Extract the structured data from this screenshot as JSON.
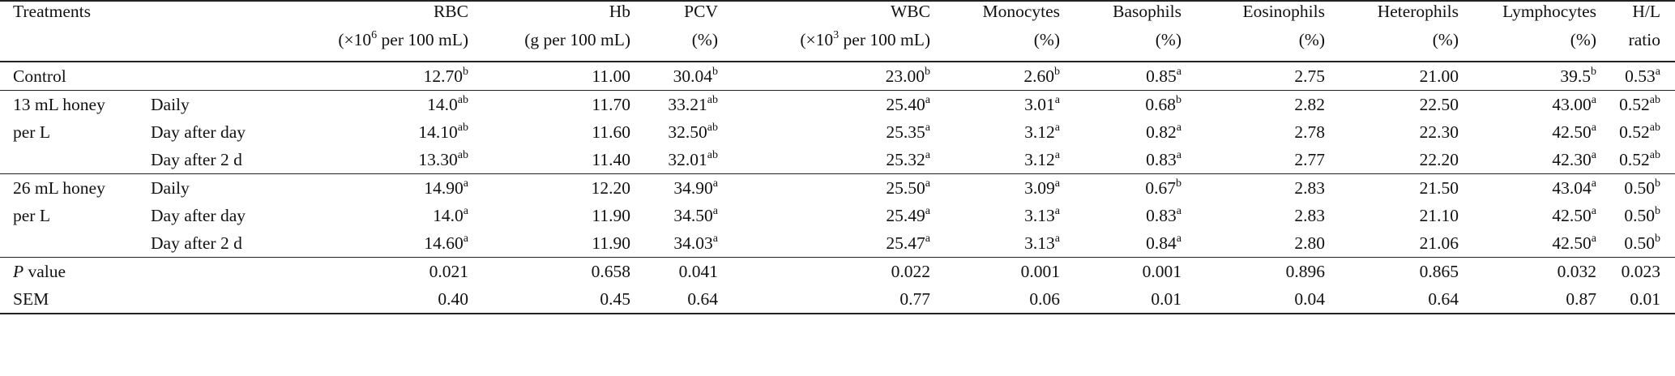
{
  "table": {
    "headers": {
      "treatments": "Treatments",
      "rbc": [
        "RBC",
        "(×10",
        "6",
        " per 100 mL)"
      ],
      "hb": [
        "Hb",
        "(g per 100 mL)"
      ],
      "pcv": [
        "PCV",
        "(%)"
      ],
      "wbc": [
        "WBC",
        "(×10",
        "3",
        " per 100 mL)"
      ],
      "monocytes": [
        "Monocytes",
        "(%)"
      ],
      "basophils": [
        "Basophils",
        "(%)"
      ],
      "eosinophils": [
        "Eosinophils",
        "(%)"
      ],
      "heterophils": [
        "Heterophils",
        "(%)"
      ],
      "lymphocytes": [
        "Lymphocytes",
        "(%)"
      ],
      "hl": [
        "H/L",
        "ratio"
      ]
    },
    "rows": [
      {
        "group": "Control",
        "sub": "",
        "rbc": [
          "12.70",
          "b"
        ],
        "hb": [
          "11.00",
          ""
        ],
        "pcv": [
          "30.04",
          "b"
        ],
        "wbc": [
          "23.00",
          "b"
        ],
        "mono": [
          "2.60",
          "b"
        ],
        "baso": [
          "0.85",
          "a"
        ],
        "eos": [
          "2.75",
          ""
        ],
        "het": [
          "21.00",
          ""
        ],
        "lym": [
          "39.5",
          "b"
        ],
        "hl": [
          "0.53",
          "a"
        ]
      },
      {
        "group": "13 mL honey",
        "sub": "Daily",
        "rbc": [
          "14.0",
          "ab"
        ],
        "hb": [
          "11.70",
          ""
        ],
        "pcv": [
          "33.21",
          "ab"
        ],
        "wbc": [
          "25.40",
          "a"
        ],
        "mono": [
          "3.01",
          "a"
        ],
        "baso": [
          "0.68",
          "b"
        ],
        "eos": [
          "2.82",
          ""
        ],
        "het": [
          "22.50",
          ""
        ],
        "lym": [
          "43.00",
          "a"
        ],
        "hl": [
          "0.52",
          "ab"
        ]
      },
      {
        "group": "per L",
        "sub": "Day after day",
        "rbc": [
          "14.10",
          "ab"
        ],
        "hb": [
          "11.60",
          ""
        ],
        "pcv": [
          "32.50",
          "ab"
        ],
        "wbc": [
          "25.35",
          "a"
        ],
        "mono": [
          "3.12",
          "a"
        ],
        "baso": [
          "0.82",
          "a"
        ],
        "eos": [
          "2.78",
          ""
        ],
        "het": [
          "22.30",
          ""
        ],
        "lym": [
          "42.50",
          "a"
        ],
        "hl": [
          "0.52",
          "ab"
        ]
      },
      {
        "group": "",
        "sub": "Day after 2 d",
        "rbc": [
          "13.30",
          "ab"
        ],
        "hb": [
          "11.40",
          ""
        ],
        "pcv": [
          "32.01",
          "ab"
        ],
        "wbc": [
          "25.32",
          "a"
        ],
        "mono": [
          "3.12",
          "a"
        ],
        "baso": [
          "0.83",
          "a"
        ],
        "eos": [
          "2.77",
          ""
        ],
        "het": [
          "22.20",
          ""
        ],
        "lym": [
          "42.30",
          "a"
        ],
        "hl": [
          "0.52",
          "ab"
        ]
      },
      {
        "group": "26 mL honey",
        "sub": "Daily",
        "rbc": [
          "14.90",
          "a"
        ],
        "hb": [
          "12.20",
          ""
        ],
        "pcv": [
          "34.90",
          "a"
        ],
        "wbc": [
          "25.50",
          "a"
        ],
        "mono": [
          "3.09",
          "a"
        ],
        "baso": [
          "0.67",
          "b"
        ],
        "eos": [
          "2.83",
          ""
        ],
        "het": [
          "21.50",
          ""
        ],
        "lym": [
          "43.04",
          "a"
        ],
        "hl": [
          "0.50",
          "b"
        ]
      },
      {
        "group": "per L",
        "sub": "Day after day",
        "rbc": [
          "14.0",
          "a"
        ],
        "hb": [
          "11.90",
          ""
        ],
        "pcv": [
          "34.50",
          "a"
        ],
        "wbc": [
          "25.49",
          "a"
        ],
        "mono": [
          "3.13",
          "a"
        ],
        "baso": [
          "0.83",
          "a"
        ],
        "eos": [
          "2.83",
          ""
        ],
        "het": [
          "21.10",
          ""
        ],
        "lym": [
          "42.50",
          "a"
        ],
        "hl": [
          "0.50",
          "b"
        ]
      },
      {
        "group": "",
        "sub": "Day after 2 d",
        "rbc": [
          "14.60",
          "a"
        ],
        "hb": [
          "11.90",
          ""
        ],
        "pcv": [
          "34.03",
          "a"
        ],
        "wbc": [
          "25.47",
          "a"
        ],
        "mono": [
          "3.13",
          "a"
        ],
        "baso": [
          "0.84",
          "a"
        ],
        "eos": [
          "2.80",
          ""
        ],
        "het": [
          "21.06",
          ""
        ],
        "lym": [
          "42.50",
          "a"
        ],
        "hl": [
          "0.50",
          "b"
        ]
      },
      {
        "group": "P",
        "group_suffix": " value",
        "sub": "",
        "rbc": [
          "0.021",
          ""
        ],
        "hb": [
          "0.658",
          ""
        ],
        "pcv": [
          "0.041",
          ""
        ],
        "wbc": [
          "0.022",
          ""
        ],
        "mono": [
          "0.001",
          ""
        ],
        "baso": [
          "0.001",
          ""
        ],
        "eos": [
          "0.896",
          ""
        ],
        "het": [
          "0.865",
          ""
        ],
        "lym": [
          "0.032",
          ""
        ],
        "hl": [
          "0.023",
          ""
        ]
      },
      {
        "group": "SEM",
        "sub": "",
        "rbc": [
          "0.40",
          ""
        ],
        "hb": [
          "0.45",
          ""
        ],
        "pcv": [
          "0.64",
          ""
        ],
        "wbc": [
          "0.77",
          ""
        ],
        "mono": [
          "0.06",
          ""
        ],
        "baso": [
          "0.01",
          ""
        ],
        "eos": [
          "0.04",
          ""
        ],
        "het": [
          "0.64",
          ""
        ],
        "lym": [
          "0.87",
          ""
        ],
        "hl": [
          "0.01",
          ""
        ]
      }
    ]
  }
}
